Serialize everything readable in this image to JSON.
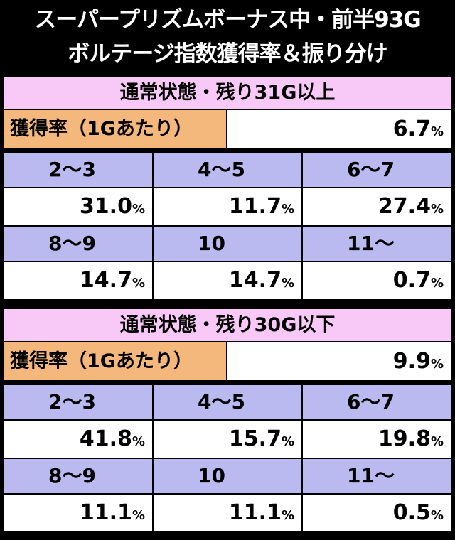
{
  "header": {
    "title_lines": [
      "スーパープリズムボーナス中・前半93G",
      "ボルテージ指数獲得率＆振り分け"
    ]
  },
  "sections": [
    {
      "heading": "通常状態・残り31G以上",
      "rate_label": "獲得率（1Gあたり）",
      "rate": {
        "number": "6.7",
        "unit": "%"
      },
      "cells": [
        {
          "label": "2～3",
          "number": "31.0",
          "unit": "%"
        },
        {
          "label": "4～5",
          "number": "11.7",
          "unit": "%"
        },
        {
          "label": "6～7",
          "number": "27.4",
          "unit": "%"
        },
        {
          "label": "8～9",
          "number": "14.7",
          "unit": "%"
        },
        {
          "label": "10",
          "number": "14.7",
          "unit": "%"
        },
        {
          "label": "11～",
          "number": "0.7",
          "unit": "%"
        }
      ]
    },
    {
      "heading": "通常状態・残り30G以下",
      "rate_label": "獲得率（1Gあたり）",
      "rate": {
        "number": "9.9",
        "unit": "%"
      },
      "cells": [
        {
          "label": "2～3",
          "number": "41.8",
          "unit": "%"
        },
        {
          "label": "4～5",
          "number": "15.7",
          "unit": "%"
        },
        {
          "label": "6～7",
          "number": "19.8",
          "unit": "%"
        },
        {
          "label": "8～9",
          "number": "11.1",
          "unit": "%"
        },
        {
          "label": "10",
          "number": "11.1",
          "unit": "%"
        },
        {
          "label": "11～",
          "number": "0.5",
          "unit": "%"
        }
      ]
    }
  ]
}
